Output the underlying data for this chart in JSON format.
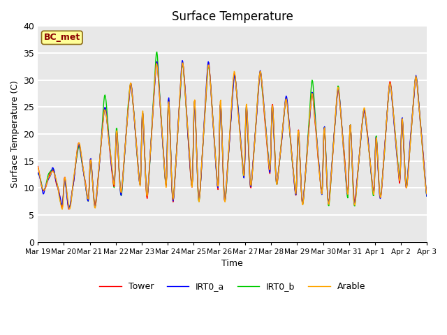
{
  "title": "Surface Temperature",
  "ylabel": "Surface Temperature (C)",
  "xlabel": "Time",
  "ylim": [
    0,
    40
  ],
  "annotation": "BC_met",
  "annotation_color": "#8B0000",
  "annotation_bg": "#FFFF99",
  "series_colors": {
    "Tower": "#FF0000",
    "IRT0_a": "#0000FF",
    "IRT0_b": "#00CC00",
    "Arable": "#FFA500"
  },
  "x_tick_labels": [
    "Mar 19",
    "Mar 20",
    "Mar 21",
    "Mar 22",
    "Mar 23",
    "Mar 24",
    "Mar 25",
    "Mar 26",
    "Mar 27",
    "Mar 28",
    "Mar 29",
    "Mar 30",
    "Mar 31",
    "Apr 1",
    "Apr 2",
    "Apr 3"
  ],
  "yticks": [
    0,
    5,
    10,
    15,
    20,
    25,
    30,
    35,
    40
  ],
  "plot_bg_color": "#E8E8E8",
  "grid_color": "white",
  "linewidth": 1.0,
  "day_peaks": [
    14,
    19,
    26,
    31,
    35,
    35,
    35,
    33,
    33,
    28,
    29,
    30,
    26,
    31,
    32,
    28
  ],
  "day_troughs": [
    9,
    5,
    5,
    7,
    6,
    5,
    5,
    5,
    8,
    9,
    5,
    5,
    5,
    6,
    8,
    6
  ]
}
